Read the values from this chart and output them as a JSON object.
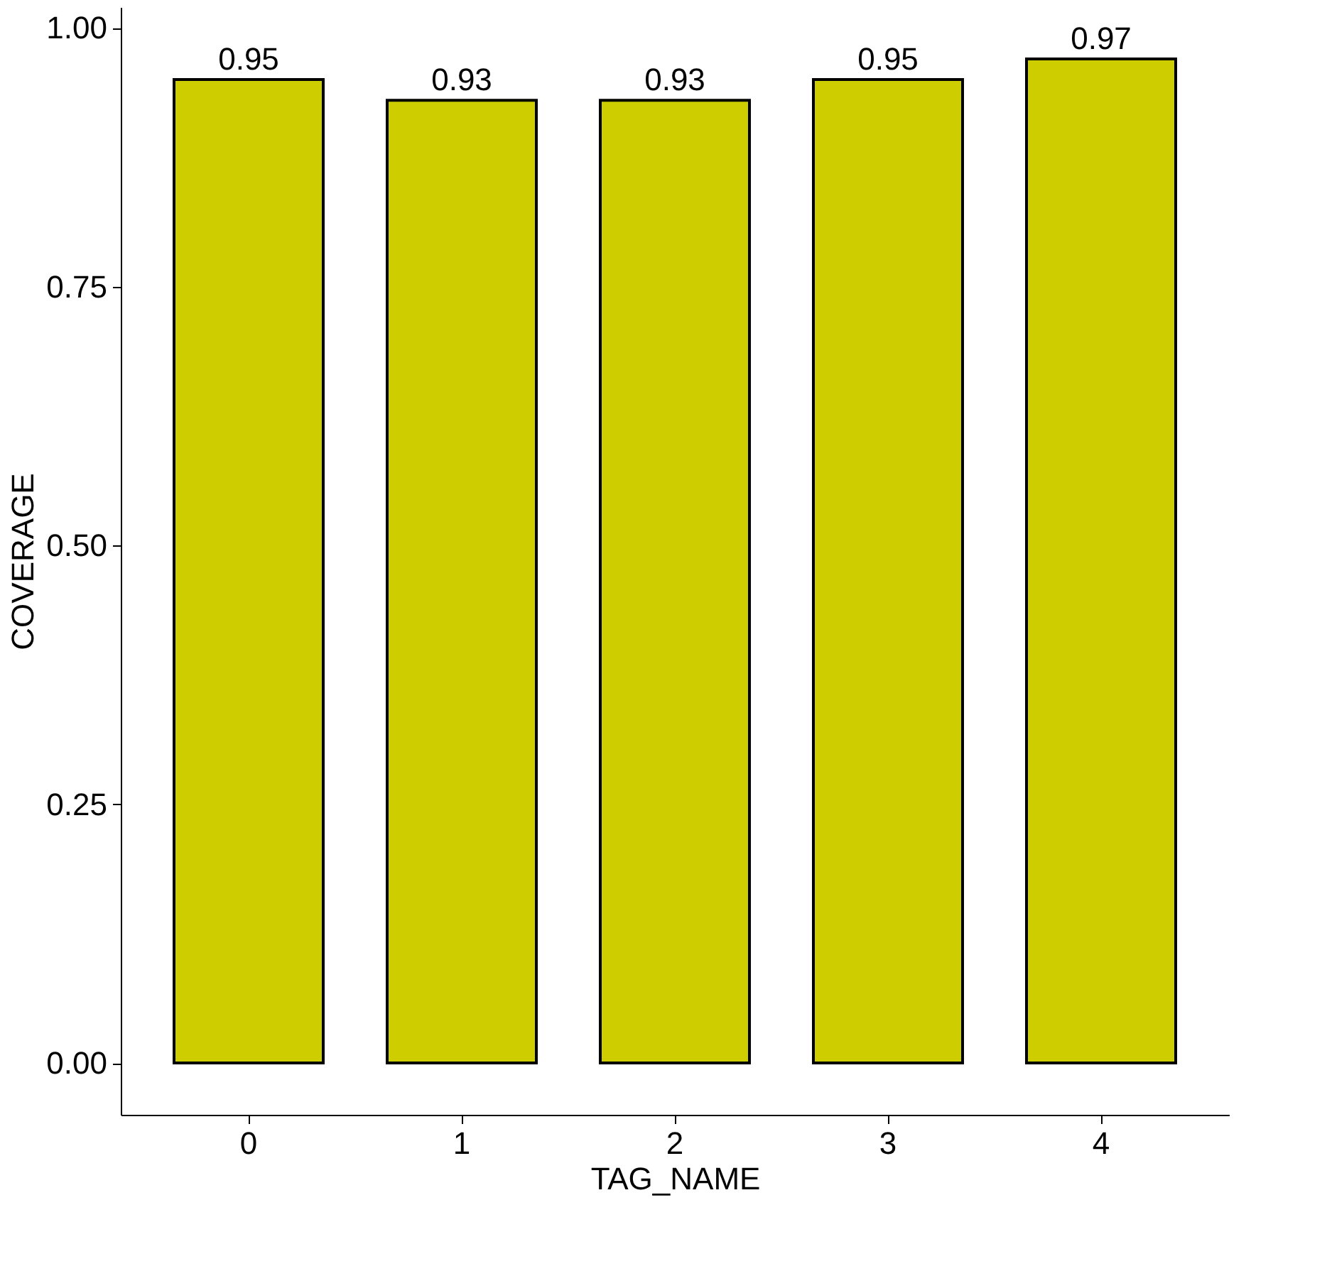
{
  "chart_data": {
    "type": "bar",
    "xlabel": "TAG_NAME",
    "ylabel": "COVERAGE",
    "categories": [
      "0",
      "1",
      "2",
      "3",
      "4"
    ],
    "values": [
      0.95,
      0.93,
      0.93,
      0.95,
      0.97
    ],
    "color": "#cdcd00",
    "ylim": [
      -0.05,
      1.02
    ],
    "yticks": [
      {
        "value": 0,
        "label": "0.00"
      },
      {
        "value": 0.25,
        "label": "0.25"
      },
      {
        "value": 0.5,
        "label": "0.50"
      },
      {
        "value": 0.75,
        "label": "0.75"
      },
      {
        "value": 1,
        "label": "1.00"
      }
    ],
    "grid": false,
    "data_labels": true
  }
}
